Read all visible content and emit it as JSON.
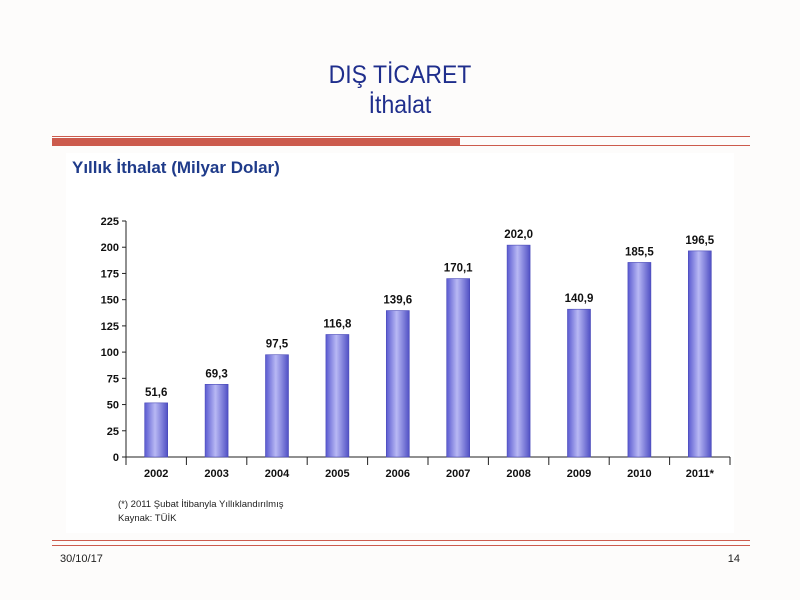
{
  "slide": {
    "title_line1": "DIŞ TİCARET",
    "title_line2": "İthalat",
    "date": "30/10/17",
    "page": "14"
  },
  "chart_data": {
    "type": "bar",
    "title": "Yıllık İthalat (Milyar Dolar)",
    "categories": [
      "2002",
      "2003",
      "2004",
      "2005",
      "2006",
      "2007",
      "2008",
      "2009",
      "2010",
      "2011*"
    ],
    "values": [
      51.6,
      69.3,
      97.5,
      116.8,
      139.6,
      170.1,
      202.0,
      140.9,
      185.5,
      196.5
    ],
    "value_labels": [
      "51,6",
      "69,3",
      "97,5",
      "116,8",
      "139,6",
      "170,1",
      "202,0",
      "140,9",
      "185,5",
      "196,5"
    ],
    "yticks": [
      0,
      25,
      50,
      75,
      100,
      125,
      150,
      175,
      200,
      225
    ],
    "ylim": [
      0,
      225
    ],
    "xlabel": "",
    "ylabel": "",
    "grid": false,
    "legend": "none",
    "bar_color": "#8a8ae6",
    "notes": [
      "(*) 2011 Şubat İtibanyla Yıllıklandırılmış",
      "Kaynak: TÜİK"
    ]
  }
}
